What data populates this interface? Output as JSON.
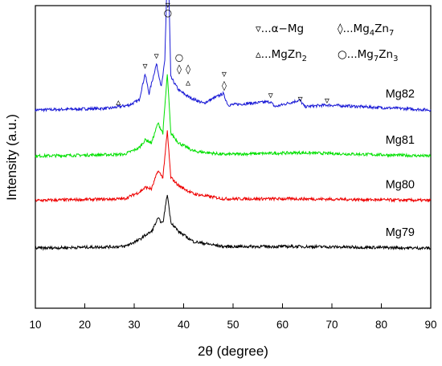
{
  "chart_data": {
    "type": "line",
    "xlabel": "2θ (degree)",
    "ylabel": "Intensity (a.u.)",
    "xlim": [
      10,
      90
    ],
    "xticks": [
      "10",
      "20",
      "30",
      "40",
      "50",
      "60",
      "70",
      "80",
      "90"
    ],
    "grid": false,
    "series": [
      {
        "name": "Mg82",
        "color": "#1a1ad6",
        "baseline": 1.0,
        "points": [
          [
            10,
            0
          ],
          [
            25,
            0.01
          ],
          [
            29,
            0.03
          ],
          [
            31,
            0.06
          ],
          [
            32.2,
            0.22
          ],
          [
            33,
            0.1
          ],
          [
            34.5,
            0.28
          ],
          [
            35.5,
            0.14
          ],
          [
            36.2,
            0.3
          ],
          [
            36.8,
            1.0
          ],
          [
            37.4,
            0.2
          ],
          [
            39,
            0.12
          ],
          [
            41,
            0.08
          ],
          [
            44,
            0.04
          ],
          [
            48,
            0.1
          ],
          [
            49,
            0.03
          ],
          [
            57.5,
            0.05
          ],
          [
            58.5,
            0.02
          ],
          [
            63.5,
            0.06
          ],
          [
            64.5,
            0.02
          ],
          [
            69,
            0.03
          ],
          [
            90,
            0
          ]
        ]
      },
      {
        "name": "Mg81",
        "color": "#00e000",
        "baseline": 0.72,
        "points": [
          [
            10,
            0
          ],
          [
            28,
            0.01
          ],
          [
            31,
            0.05
          ],
          [
            32.3,
            0.1
          ],
          [
            33.5,
            0.08
          ],
          [
            34.8,
            0.2
          ],
          [
            35.8,
            0.14
          ],
          [
            36.7,
            0.5
          ],
          [
            37.4,
            0.14
          ],
          [
            39,
            0.08
          ],
          [
            42,
            0.03
          ],
          [
            48,
            0.01
          ],
          [
            63.5,
            0.02
          ],
          [
            90,
            0
          ]
        ]
      },
      {
        "name": "Mg80",
        "color": "#ee0000",
        "baseline": 0.45,
        "points": [
          [
            10,
            0
          ],
          [
            28,
            0.01
          ],
          [
            31,
            0.05
          ],
          [
            32.3,
            0.08
          ],
          [
            33.5,
            0.07
          ],
          [
            34.8,
            0.18
          ],
          [
            35.8,
            0.14
          ],
          [
            36.7,
            0.42
          ],
          [
            37.4,
            0.14
          ],
          [
            39,
            0.09
          ],
          [
            42,
            0.04
          ],
          [
            48,
            0.01
          ],
          [
            63.5,
            0.01
          ],
          [
            90,
            0
          ]
        ]
      },
      {
        "name": "Mg79",
        "color": "#000000",
        "baseline": 0.16,
        "points": [
          [
            10,
            0
          ],
          [
            28,
            0.01
          ],
          [
            31,
            0.05
          ],
          [
            32.3,
            0.08
          ],
          [
            33.5,
            0.1
          ],
          [
            34.8,
            0.18
          ],
          [
            35.8,
            0.15
          ],
          [
            36.7,
            0.33
          ],
          [
            37.4,
            0.16
          ],
          [
            39,
            0.1
          ],
          [
            42,
            0.04
          ],
          [
            48,
            0.01
          ],
          [
            63.5,
            0.01
          ],
          [
            90,
            0
          ]
        ]
      }
    ],
    "legend": {
      "placement": "top-right",
      "entries": [
        {
          "symbol": "▿",
          "text": "...α−Mg"
        },
        {
          "symbol": "◊",
          "text": "...Mg",
          "sub1": "4",
          "mid": "Zn",
          "sub2": "7"
        },
        {
          "symbol": "▵",
          "text": "...MgZn",
          "sub1": "2"
        },
        {
          "symbol": "○",
          "text": "...Mg",
          "sub1": "7",
          "mid": "Zn",
          "sub2": "3"
        }
      ]
    },
    "annotations": [
      {
        "symbol": "▵",
        "x": 26.8,
        "y": 1.03
      },
      {
        "symbol": "▿",
        "x": 32.2,
        "y": 1.25
      },
      {
        "symbol": "▿",
        "x": 34.5,
        "y": 1.31
      },
      {
        "symbol": "▿",
        "x": 36.8,
        "y": 1.62
      },
      {
        "symbol": "○",
        "x": 36.8,
        "y": 1.57
      },
      {
        "symbol": "○",
        "x": 39.1,
        "y": 1.3
      },
      {
        "symbol": "◊",
        "x": 39.1,
        "y": 1.23
      },
      {
        "symbol": "◊",
        "x": 40.9,
        "y": 1.23
      },
      {
        "symbol": "▵",
        "x": 40.9,
        "y": 1.15
      },
      {
        "symbol": "▿",
        "x": 48.2,
        "y": 1.2
      },
      {
        "symbol": "◊",
        "x": 48.2,
        "y": 1.13
      },
      {
        "symbol": "▿",
        "x": 57.6,
        "y": 1.07
      },
      {
        "symbol": "▿",
        "x": 63.6,
        "y": 1.05
      },
      {
        "symbol": "▿",
        "x": 69.0,
        "y": 1.04
      }
    ]
  }
}
